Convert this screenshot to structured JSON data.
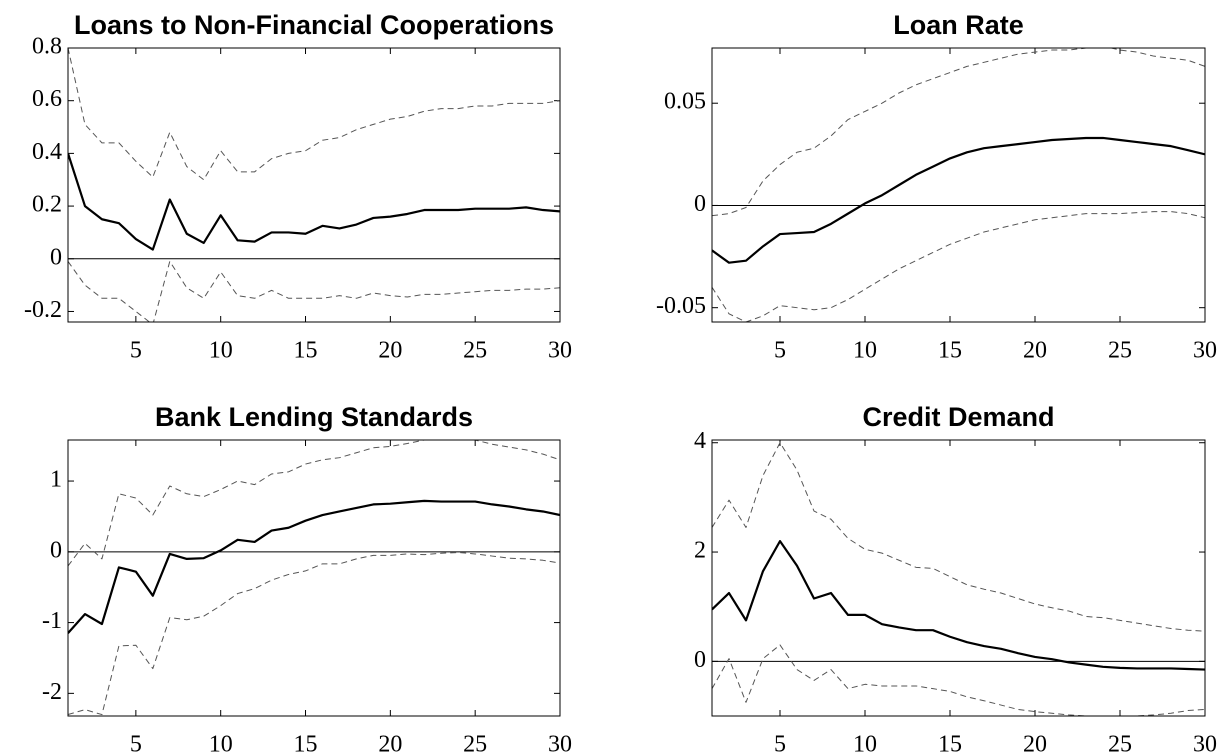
{
  "chart_data": [
    {
      "type": "line",
      "title": "Loans to Non-Financial Cooperations",
      "x": [
        1,
        2,
        3,
        4,
        5,
        6,
        7,
        8,
        9,
        10,
        11,
        12,
        13,
        14,
        15,
        16,
        17,
        18,
        19,
        20,
        21,
        22,
        23,
        24,
        25,
        26,
        27,
        28,
        29,
        30
      ],
      "xlim": [
        1,
        30
      ],
      "xticks": [
        5,
        10,
        15,
        20,
        25,
        30
      ],
      "ylim": [
        -0.24,
        0.8
      ],
      "yticks": [
        -0.2,
        0,
        0.2,
        0.4,
        0.6,
        0.8
      ],
      "series": [
        {
          "color": "#000000",
          "style": "solid",
          "values": [
            0.4,
            0.2,
            0.15,
            0.135,
            0.075,
            0.035,
            0.225,
            0.095,
            0.06,
            0.165,
            0.07,
            0.065,
            0.1,
            0.1,
            0.095,
            0.125,
            0.115,
            0.13,
            0.155,
            0.16,
            0.17,
            0.185,
            0.185,
            0.185,
            0.19,
            0.19,
            0.19,
            0.195,
            0.185,
            0.18
          ]
        },
        {
          "color": "#555555",
          "style": "dashed",
          "values": [
            0.8,
            0.51,
            0.44,
            0.44,
            0.37,
            0.31,
            0.48,
            0.35,
            0.3,
            0.41,
            0.33,
            0.33,
            0.38,
            0.4,
            0.41,
            0.45,
            0.46,
            0.49,
            0.51,
            0.53,
            0.54,
            0.56,
            0.57,
            0.57,
            0.58,
            0.58,
            0.59,
            0.59,
            0.59,
            0.6
          ]
        },
        {
          "color": "#555555",
          "style": "dashed",
          "values": [
            -0.01,
            -0.1,
            -0.15,
            -0.15,
            -0.2,
            -0.25,
            -0.01,
            -0.11,
            -0.15,
            -0.05,
            -0.14,
            -0.15,
            -0.12,
            -0.15,
            -0.15,
            -0.15,
            -0.14,
            -0.15,
            -0.13,
            -0.14,
            -0.145,
            -0.135,
            -0.135,
            -0.13,
            -0.125,
            -0.12,
            -0.12,
            -0.115,
            -0.115,
            -0.11
          ]
        }
      ]
    },
    {
      "type": "line",
      "title": "Loan Rate",
      "x": [
        1,
        2,
        3,
        4,
        5,
        6,
        7,
        8,
        9,
        10,
        11,
        12,
        13,
        14,
        15,
        16,
        17,
        18,
        19,
        20,
        21,
        22,
        23,
        24,
        25,
        26,
        27,
        28,
        29,
        30
      ],
      "xlim": [
        1,
        30
      ],
      "xticks": [
        5,
        10,
        15,
        20,
        25,
        30
      ],
      "ylim": [
        -0.057,
        0.077
      ],
      "yticks": [
        -0.05,
        0,
        0.05
      ],
      "series": [
        {
          "color": "#000000",
          "style": "solid",
          "values": [
            -0.022,
            -0.028,
            -0.027,
            -0.02,
            -0.014,
            -0.0135,
            -0.013,
            -0.009,
            -0.004,
            0.001,
            0.005,
            0.01,
            0.015,
            0.019,
            0.023,
            0.026,
            0.028,
            0.029,
            0.03,
            0.031,
            0.032,
            0.0325,
            0.033,
            0.033,
            0.032,
            0.031,
            0.03,
            0.029,
            0.027,
            0.025
          ]
        },
        {
          "color": "#555555",
          "style": "dashed",
          "values": [
            -0.005,
            -0.004,
            -0.001,
            0.012,
            0.02,
            0.026,
            0.028,
            0.034,
            0.042,
            0.046,
            0.05,
            0.055,
            0.059,
            0.062,
            0.065,
            0.068,
            0.07,
            0.072,
            0.074,
            0.075,
            0.076,
            0.076,
            0.077,
            0.078,
            0.076,
            0.075,
            0.073,
            0.072,
            0.071,
            0.068
          ]
        },
        {
          "color": "#555555",
          "style": "dashed",
          "values": [
            -0.04,
            -0.053,
            -0.057,
            -0.054,
            -0.049,
            -0.05,
            -0.051,
            -0.05,
            -0.046,
            -0.041,
            -0.036,
            -0.031,
            -0.027,
            -0.023,
            -0.019,
            -0.016,
            -0.013,
            -0.011,
            -0.009,
            -0.007,
            -0.006,
            -0.005,
            -0.004,
            -0.004,
            -0.004,
            -0.0035,
            -0.003,
            -0.003,
            -0.004,
            -0.006
          ]
        }
      ]
    },
    {
      "type": "line",
      "title": "Bank Lending Standards",
      "x": [
        1,
        2,
        3,
        4,
        5,
        6,
        7,
        8,
        9,
        10,
        11,
        12,
        13,
        14,
        15,
        16,
        17,
        18,
        19,
        20,
        21,
        22,
        23,
        24,
        25,
        26,
        27,
        28,
        29,
        30
      ],
      "xlim": [
        1,
        30
      ],
      "xticks": [
        5,
        10,
        15,
        20,
        25,
        30
      ],
      "ylim": [
        -2.32,
        1.58
      ],
      "yticks": [
        -2,
        -1,
        0,
        1
      ],
      "series": [
        {
          "color": "#000000",
          "style": "solid",
          "values": [
            -1.15,
            -0.88,
            -1.02,
            -0.22,
            -0.28,
            -0.62,
            -0.03,
            -0.1,
            -0.09,
            0.02,
            0.17,
            0.14,
            0.3,
            0.34,
            0.44,
            0.52,
            0.57,
            0.62,
            0.67,
            0.68,
            0.7,
            0.72,
            0.71,
            0.71,
            0.71,
            0.67,
            0.64,
            0.6,
            0.57,
            0.52
          ]
        },
        {
          "color": "#555555",
          "style": "dashed",
          "values": [
            -0.2,
            0.12,
            -0.1,
            0.82,
            0.76,
            0.52,
            0.93,
            0.82,
            0.78,
            0.88,
            1.0,
            0.95,
            1.1,
            1.13,
            1.24,
            1.3,
            1.33,
            1.4,
            1.47,
            1.49,
            1.53,
            1.58,
            1.6,
            1.59,
            1.58,
            1.52,
            1.48,
            1.44,
            1.38,
            1.3
          ]
        },
        {
          "color": "#555555",
          "style": "dashed",
          "values": [
            -2.3,
            -2.23,
            -2.3,
            -1.33,
            -1.32,
            -1.65,
            -0.93,
            -0.96,
            -0.91,
            -0.76,
            -0.59,
            -0.52,
            -0.4,
            -0.32,
            -0.27,
            -0.17,
            -0.17,
            -0.1,
            -0.05,
            -0.05,
            -0.03,
            -0.04,
            -0.02,
            -0.01,
            -0.03,
            -0.06,
            -0.09,
            -0.1,
            -0.12,
            -0.16
          ]
        }
      ]
    },
    {
      "type": "line",
      "title": "Credit Demand",
      "x": [
        1,
        2,
        3,
        4,
        5,
        6,
        7,
        8,
        9,
        10,
        11,
        12,
        13,
        14,
        15,
        16,
        17,
        18,
        19,
        20,
        21,
        22,
        23,
        24,
        25,
        26,
        27,
        28,
        29,
        30
      ],
      "xlim": [
        1,
        30
      ],
      "xticks": [
        5,
        10,
        15,
        20,
        25,
        30
      ],
      "ylim": [
        -1,
        4.05
      ],
      "yticks": [
        0,
        2,
        4
      ],
      "series": [
        {
          "color": "#000000",
          "style": "solid",
          "values": [
            0.95,
            1.25,
            0.75,
            1.65,
            2.2,
            1.75,
            1.15,
            1.25,
            0.85,
            0.85,
            0.68,
            0.62,
            0.57,
            0.57,
            0.45,
            0.35,
            0.28,
            0.23,
            0.15,
            0.08,
            0.04,
            -0.02,
            -0.06,
            -0.1,
            -0.12,
            -0.13,
            -0.13,
            -0.13,
            -0.14,
            -0.15
          ]
        },
        {
          "color": "#555555",
          "style": "dashed",
          "values": [
            2.45,
            2.95,
            2.45,
            3.4,
            4.0,
            3.5,
            2.75,
            2.6,
            2.25,
            2.05,
            1.98,
            1.85,
            1.72,
            1.7,
            1.55,
            1.4,
            1.32,
            1.25,
            1.15,
            1.05,
            0.98,
            0.92,
            0.82,
            0.8,
            0.75,
            0.7,
            0.65,
            0.6,
            0.57,
            0.55
          ]
        },
        {
          "color": "#555555",
          "style": "dashed",
          "values": [
            -0.5,
            0.05,
            -0.75,
            0.05,
            0.3,
            -0.15,
            -0.35,
            -0.15,
            -0.5,
            -0.42,
            -0.45,
            -0.45,
            -0.45,
            -0.5,
            -0.55,
            -0.65,
            -0.72,
            -0.8,
            -0.88,
            -0.92,
            -0.95,
            -0.98,
            -1.0,
            -1.0,
            -1.0,
            -1.0,
            -0.98,
            -0.95,
            -0.9,
            -0.88
          ]
        }
      ]
    }
  ]
}
